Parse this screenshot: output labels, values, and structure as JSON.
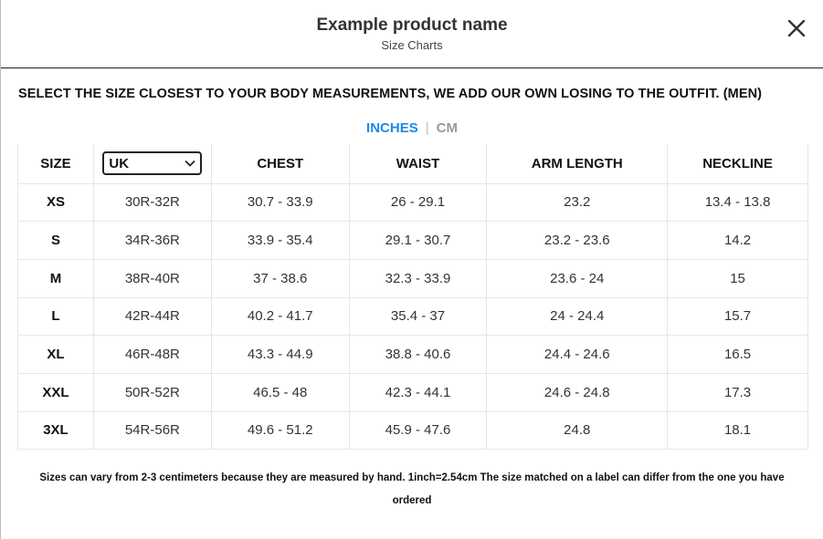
{
  "header": {
    "title": "Example product name",
    "subtitle": "Size Charts"
  },
  "heading": "SELECT THE SIZE CLOSEST TO YOUR BODY MEASUREMENTS, WE ADD OUR OWN LOSING TO THE OUTFIT. (MEN)",
  "units": {
    "active": "INCHES",
    "inactive": "CM",
    "active_color": "#1e88e5"
  },
  "table": {
    "columns": [
      "SIZE",
      "UK",
      "CHEST",
      "WAIST",
      "ARM LENGTH",
      "NECKLINE"
    ],
    "rows": [
      [
        "XS",
        "30R-32R",
        "30.7 - 33.9",
        "26 - 29.1",
        "23.2",
        "13.4 - 13.8"
      ],
      [
        "S",
        "34R-36R",
        "33.9 - 35.4",
        "29.1 - 30.7",
        "23.2 - 23.6",
        "14.2"
      ],
      [
        "M",
        "38R-40R",
        "37 - 38.6",
        "32.3 - 33.9",
        "23.6 - 24",
        "15"
      ],
      [
        "L",
        "42R-44R",
        "40.2 - 41.7",
        "35.4 - 37",
        "24 - 24.4",
        "15.7"
      ],
      [
        "XL",
        "46R-48R",
        "43.3 - 44.9",
        "38.8 - 40.6",
        "24.4 - 24.6",
        "16.5"
      ],
      [
        "XXL",
        "50R-52R",
        "46.5 - 48",
        "42.3 - 44.1",
        "24.6 - 24.8",
        "17.3"
      ],
      [
        "3XL",
        "54R-56R",
        "49.6 - 51.2",
        "45.9 - 47.6",
        "24.8",
        "18.1"
      ]
    ]
  },
  "note": "Sizes can vary from 2-3 centimeters because they are measured by hand. 1inch=2.54cm The size matched on a label can differ from the one you have ordered"
}
